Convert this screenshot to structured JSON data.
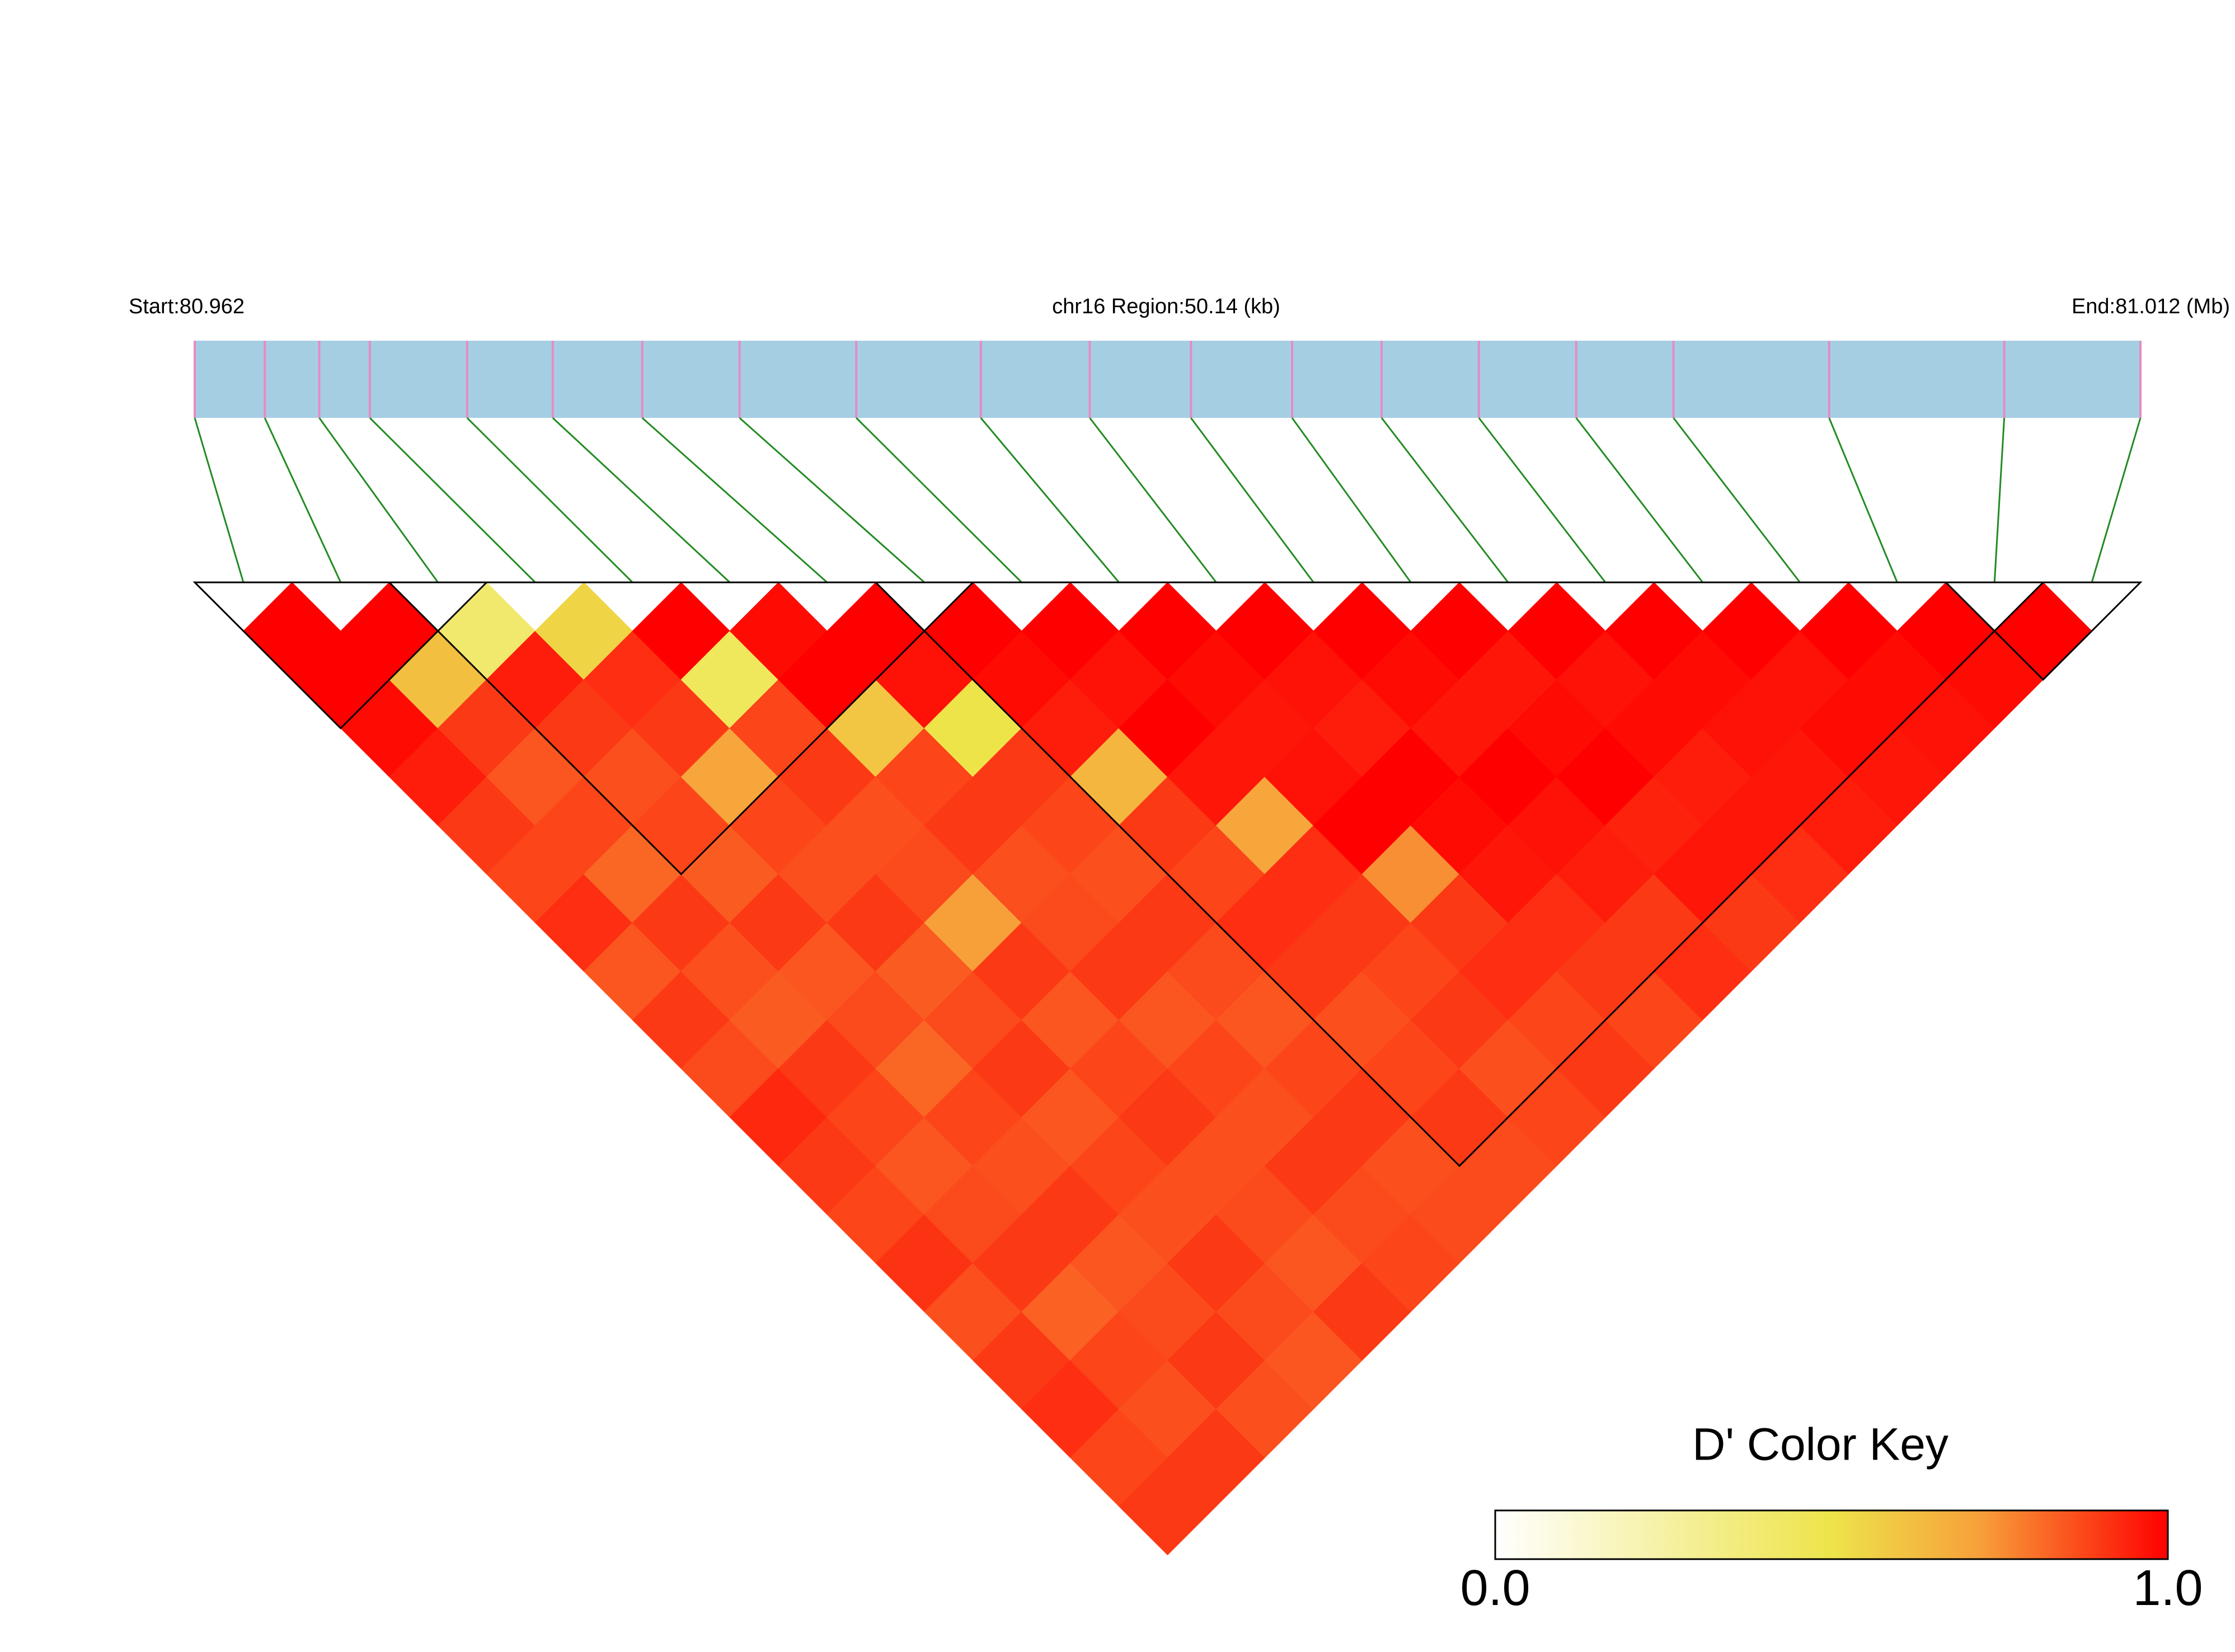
{
  "chart_data": {
    "type": "ld_heatmap",
    "start_label": "Start:80.962",
    "title": "chr16 Region:50.14 (kb)",
    "end_label": "End:81.012 (Mb)",
    "xlim": [
      80.962,
      81.012
    ],
    "snp_positions": [
      80.962,
      80.9638,
      80.9652,
      80.9665,
      80.969,
      80.9712,
      80.9735,
      80.976,
      80.979,
      80.9822,
      80.985,
      80.9876,
      80.9902,
      80.9925,
      80.995,
      80.9975,
      81.0,
      81.004,
      81.0085,
      81.012
    ],
    "dprime": [
      [
        1,
        1,
        0.98,
        0.95,
        0.9,
        0.88,
        0.92,
        0.85,
        0.9,
        0.87,
        0.93,
        0.9,
        0.88,
        0.91,
        0.86,
        0.9,
        0.92,
        0.88,
        0.9
      ],
      [
        1,
        0.62,
        0.9,
        0.85,
        0.88,
        0.82,
        0.9,
        0.86,
        0.84,
        0.9,
        0.88,
        0.85,
        0.87,
        0.9,
        0.83,
        0.88,
        0.86,
        0.9
      ],
      [
        0.4,
        0.95,
        0.9,
        0.86,
        0.88,
        0.84,
        0.9,
        0.85,
        0.87,
        0.82,
        0.88,
        0.86,
        0.9,
        0.85,
        0.87,
        0.9,
        0.86
      ],
      [
        0.55,
        0.92,
        0.9,
        0.7,
        0.88,
        0.86,
        0.9,
        0.84,
        0.87,
        0.9,
        0.85,
        0.88,
        0.86,
        0.9,
        0.87,
        0.85
      ],
      [
        1,
        0.45,
        0.88,
        0.9,
        0.86,
        0.87,
        0.72,
        0.9,
        0.85,
        0.88,
        0.9,
        0.86,
        0.87,
        0.85,
        0.9
      ],
      [
        0.98,
        1,
        0.6,
        0.88,
        0.9,
        0.86,
        0.87,
        0.9,
        0.85,
        0.88,
        0.86,
        0.9,
        0.87,
        0.88
      ],
      [
        1,
        0.97,
        0.5,
        0.9,
        0.88,
        0.86,
        0.9,
        0.87,
        0.85,
        0.88,
        0.9,
        0.86,
        0.87
      ],
      [
        1,
        0.98,
        0.95,
        0.65,
        0.9,
        0.88,
        0.92,
        0.9,
        0.86,
        0.88,
        0.9,
        0.87
      ],
      [
        1,
        0.97,
        1,
        0.96,
        0.7,
        0.92,
        0.9,
        0.88,
        0.9,
        0.86,
        0.88
      ],
      [
        1,
        0.98,
        0.96,
        0.97,
        1,
        0.75,
        0.9,
        0.92,
        0.88,
        0.9
      ],
      [
        1,
        0.97,
        0.95,
        1,
        0.98,
        0.96,
        0.92,
        0.9,
        0.88
      ],
      [
        1,
        0.98,
        0.96,
        1,
        0.97,
        0.95,
        0.9,
        0.92
      ],
      [
        1,
        0.96,
        0.98,
        1,
        0.94,
        0.96,
        0.9
      ],
      [
        1,
        0.97,
        0.98,
        0.95,
        0.96,
        0.92
      ],
      [
        1,
        0.98,
        0.97,
        0.96,
        0.95
      ],
      [
        1,
        0.97,
        0.98,
        0.96
      ],
      [
        1,
        0.98,
        0.97
      ],
      [
        1,
        0.98
      ],
      [
        1
      ]
    ],
    "blocks": [
      [
        0,
        2
      ],
      [
        2,
        7
      ],
      [
        7,
        18
      ],
      [
        18,
        19
      ]
    ],
    "bar_color": "#a6cee3",
    "snp_tick_color": "#e78ac3",
    "connector_color": "#228b22",
    "color_key": {
      "title": "D' Color Key",
      "stops": [
        {
          "value": 0,
          "color": "#ffffff"
        },
        {
          "value": 0.5,
          "color": "#ede44a"
        },
        {
          "value": 0.72,
          "color": "#f7a03a"
        },
        {
          "value": 1,
          "color": "#ff0000"
        }
      ],
      "ticks": [
        {
          "value": 0,
          "label": "0.0"
        },
        {
          "value": 1,
          "label": "1.0"
        }
      ]
    }
  }
}
